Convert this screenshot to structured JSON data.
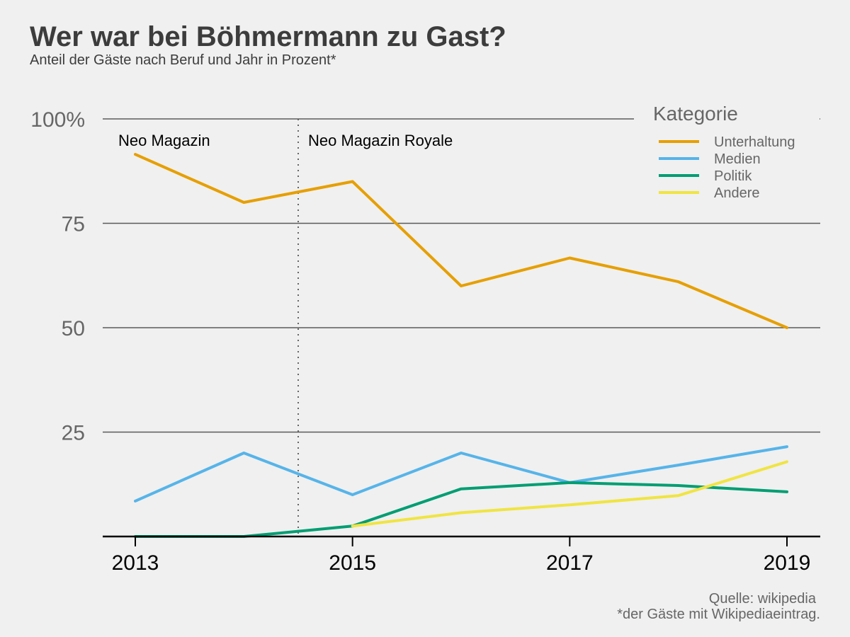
{
  "chart_data": {
    "type": "line",
    "title": "Wer war bei Böhmermann zu Gast?",
    "subtitle": "Anteil der Gäste nach Beruf und Jahr in Prozent*",
    "x": [
      2013,
      2014,
      2015,
      2016,
      2017,
      2018,
      2019
    ],
    "x_ticks": [
      "2013",
      "2015",
      "2017",
      "2019"
    ],
    "y_ticks": [
      "100%",
      "75",
      "50",
      "25"
    ],
    "ylim": [
      0,
      100
    ],
    "grid": true,
    "legend_title": "Kategorie",
    "legend_position": "top-right",
    "series": [
      {
        "name": "Unterhaltung",
        "color": "#e69f00",
        "values": [
          91.5,
          80,
          85,
          60,
          66.7,
          61,
          50
        ]
      },
      {
        "name": "Medien",
        "color": "#56b4e9",
        "values": [
          8.5,
          20,
          10,
          20,
          12.9,
          17.1,
          21.5
        ]
      },
      {
        "name": "Politik",
        "color": "#009e73",
        "values": [
          0,
          0,
          2.5,
          11.4,
          12.9,
          12.2,
          10.7
        ]
      },
      {
        "name": "Andere",
        "color": "#f0e442",
        "values": [
          null,
          null,
          2.5,
          5.7,
          7.6,
          9.8,
          17.9
        ]
      }
    ],
    "annotations": {
      "divider_x": 2014.5,
      "left_label": "Neo Magazin",
      "right_label": "Neo Magazin Royale"
    }
  },
  "footer": {
    "source": "Quelle: wikipedia",
    "note": "*der Gäste mit Wikipediaeintrag."
  }
}
